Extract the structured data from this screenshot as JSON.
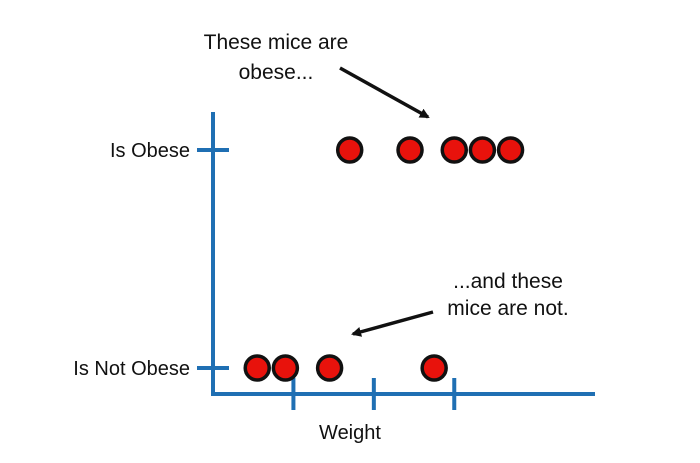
{
  "chart_data": {
    "type": "scatter",
    "xlabel": "Weight",
    "y_categories": [
      "Is Not Obese",
      "Is Obese"
    ],
    "series": [
      {
        "points": [
          {
            "x": 1.1,
            "y": "Is Not Obese"
          },
          {
            "x": 1.8,
            "y": "Is Not Obese"
          },
          {
            "x": 2.9,
            "y": "Is Not Obese"
          },
          {
            "x": 5.5,
            "y": "Is Not Obese"
          },
          {
            "x": 3.4,
            "y": "Is Obese"
          },
          {
            "x": 4.9,
            "y": "Is Obese"
          },
          {
            "x": 6.0,
            "y": "Is Obese"
          },
          {
            "x": 6.7,
            "y": "Is Obese"
          },
          {
            "x": 7.4,
            "y": "Is Obese"
          }
        ]
      }
    ],
    "xlim": [
      0,
      9.5
    ],
    "x_ticks": [
      2,
      4,
      6
    ],
    "tick_labels_visible": false,
    "grid": false,
    "colors": {
      "axis": "#1f6fb3",
      "point_fill": "#e8120c",
      "point_stroke": "#111111"
    },
    "annotations": [
      {
        "text": [
          "These mice are",
          "obese..."
        ],
        "points_to": "Is Obese"
      },
      {
        "text": [
          "...and these",
          "mice are not."
        ],
        "points_to": "Is Not Obese"
      }
    ]
  }
}
